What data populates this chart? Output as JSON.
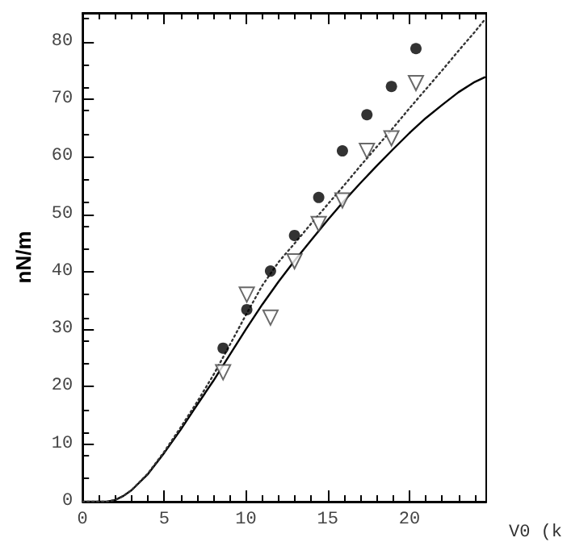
{
  "chart_data": {
    "type": "line",
    "xlabel": "V0 (k",
    "ylabel": "nN/m",
    "xlim": [
      0,
      24.7
    ],
    "xticks": [
      0,
      5,
      10,
      15,
      20
    ],
    "ylim": [
      0,
      85
    ],
    "yticks": [
      0,
      10,
      20,
      30,
      40,
      50,
      60,
      70,
      80
    ],
    "grid": false,
    "series": [
      {
        "type": "scatter",
        "color": "#000000",
        "marker": "circle",
        "x": [
          8.6,
          10.05,
          11.5,
          12.97,
          14.45,
          15.9,
          17.4,
          18.9,
          20.4
        ],
        "values": [
          26.7,
          33.4,
          40.1,
          46.3,
          52.9,
          61.0,
          67.3,
          72.2,
          78.8
        ]
      },
      {
        "type": "scatter",
        "color": "#444444",
        "marker": "triangle",
        "x": [
          8.6,
          10.05,
          11.5,
          12.97,
          14.45,
          15.9,
          17.4,
          18.9,
          20.4
        ],
        "values": [
          22.5,
          36.0,
          32.0,
          41.8,
          48.3,
          52.4,
          61.0,
          63.2,
          72.8
        ]
      },
      {
        "color": "#000000",
        "marker": "none",
        "line_style": "solid",
        "x": [
          0,
          1.5,
          2,
          2.5,
          3,
          4,
          5,
          6,
          7,
          8,
          9,
          10,
          11,
          12,
          13,
          14,
          15,
          16,
          17,
          18,
          19,
          20,
          21,
          22,
          23,
          24,
          24.6
        ],
        "values": [
          0,
          0,
          0.3,
          1,
          2,
          4.8,
          8.5,
          12.5,
          16.8,
          21,
          25.5,
          30,
          34.3,
          38.3,
          42,
          45.5,
          49,
          52.3,
          55.4,
          58.4,
          61.3,
          64.1,
          66.7,
          69,
          71.2,
          73,
          73.8
        ]
      },
      {
        "color": "#333333",
        "marker": "none",
        "line_style": "dotted",
        "x": [
          0,
          1.5,
          2,
          2.5,
          3,
          4,
          5,
          6,
          7,
          8,
          9,
          10,
          11,
          12,
          13,
          14,
          15,
          16,
          17,
          18,
          19,
          20,
          21,
          22,
          23,
          24,
          24.6
        ],
        "values": [
          0,
          0,
          0.3,
          1,
          2,
          4.9,
          8.7,
          12.9,
          17.3,
          22,
          27.2,
          32.5,
          37.6,
          41.7,
          45,
          48.4,
          51.7,
          55,
          58.4,
          61.7,
          65,
          68.4,
          71.7,
          75,
          78.4,
          81.7,
          83.8
        ]
      }
    ]
  }
}
